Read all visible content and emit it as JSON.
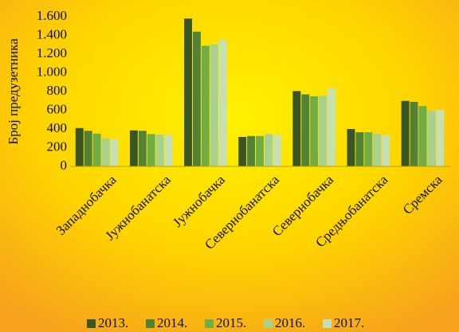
{
  "chart_data": {
    "type": "bar",
    "ylabel": "Број предузетника",
    "categories": [
      "Западнобачка",
      "Јужнобанатска",
      "Јужнобачка",
      "Севернобанатска",
      "Севернобачка",
      "Средњобанатска",
      "Сремска"
    ],
    "series": [
      {
        "name": "2013.",
        "color": "#375623",
        "values": [
          410,
          385,
          1580,
          315,
          805,
          400,
          700
        ]
      },
      {
        "name": "2014.",
        "color": "#548235",
        "values": [
          380,
          380,
          1440,
          325,
          770,
          365,
          690
        ]
      },
      {
        "name": "2015.",
        "color": "#70ad47",
        "values": [
          350,
          345,
          1290,
          325,
          750,
          365,
          645
        ]
      },
      {
        "name": "2016.",
        "color": "#a9d18e",
        "values": [
          300,
          340,
          1305,
          345,
          755,
          350,
          595
        ]
      },
      {
        "name": "2017.",
        "color": "#c5e0b4",
        "values": [
          290,
          335,
          1355,
          335,
          835,
          335,
          605
        ]
      }
    ],
    "ylim": [
      0,
      1600
    ],
    "yticks": [
      0,
      200,
      400,
      600,
      800,
      {
        "value": 1000,
        "label": "1.000"
      },
      {
        "value": 1200,
        "label": "1.200"
      },
      {
        "value": 1400,
        "label": "1.400"
      },
      {
        "value": 1600,
        "label": "1.600"
      }
    ],
    "grid": false,
    "legend": "bottom"
  }
}
